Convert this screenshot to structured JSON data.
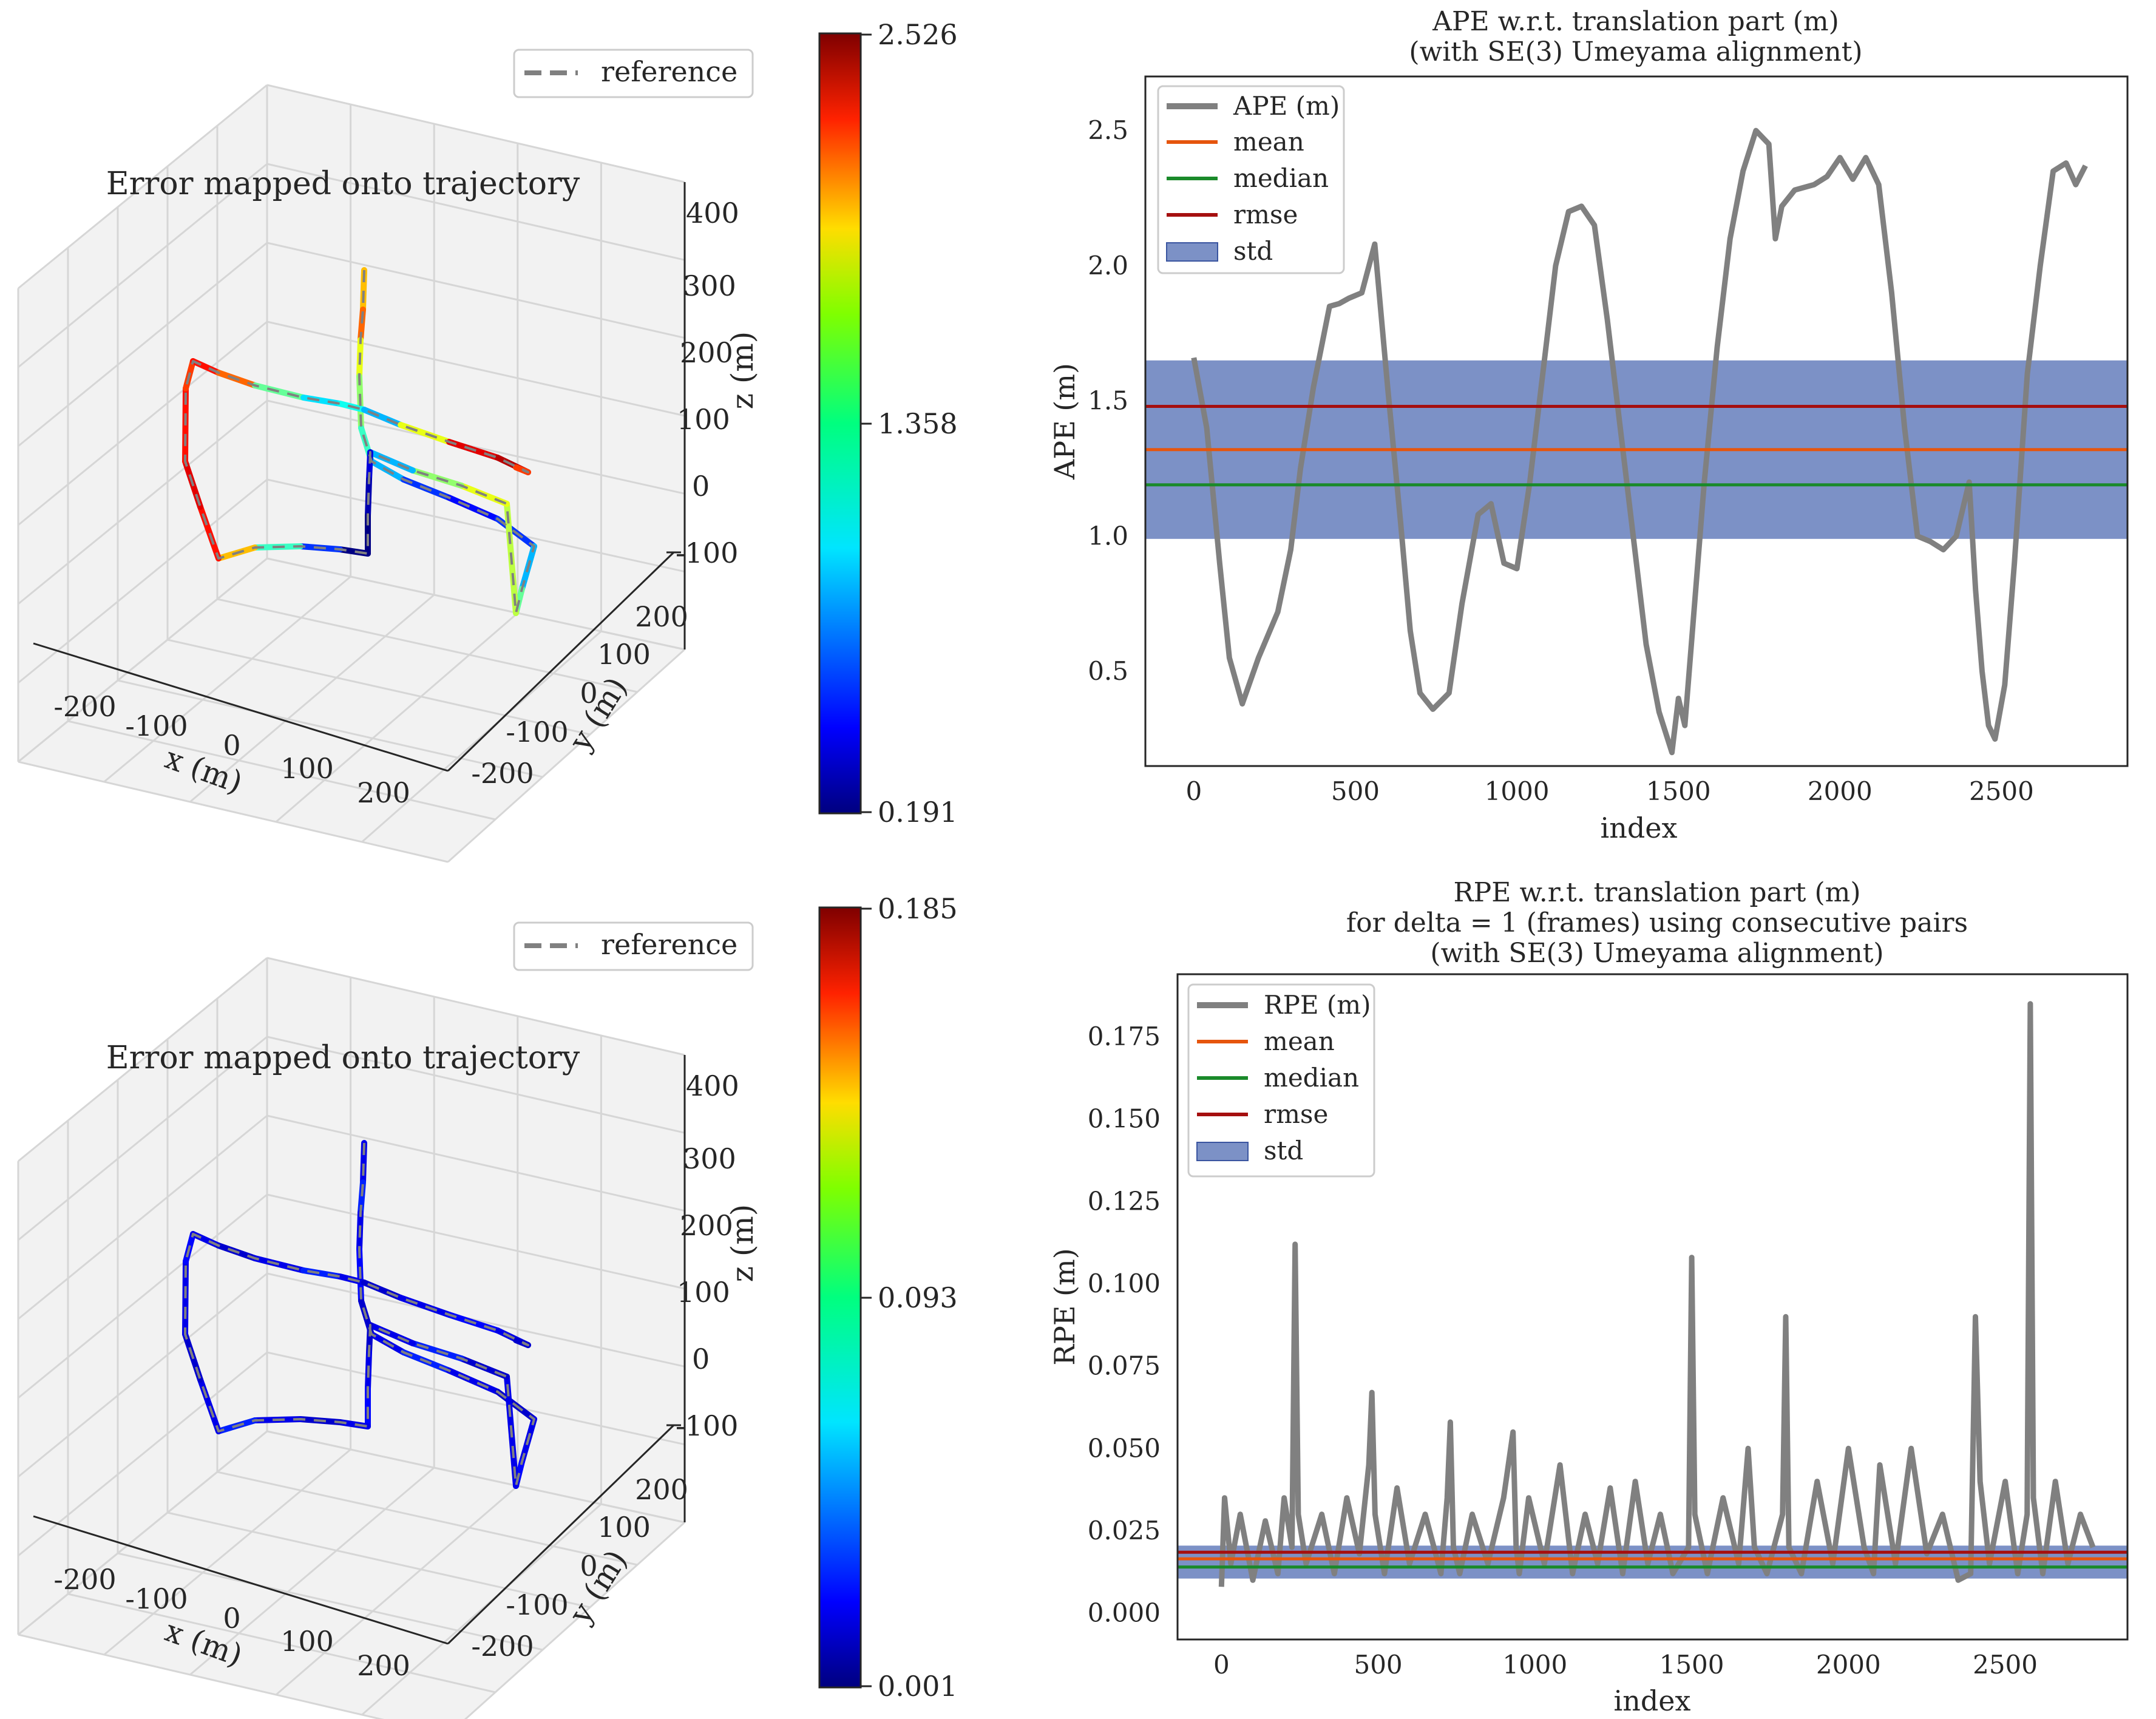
{
  "chart_data": [
    {
      "type": "scatter",
      "subtype": "3d-trajectory",
      "title": "Error mapped onto trajectory",
      "legend": [
        "reference"
      ],
      "legend_placement": "top-right",
      "xlabel": "x (m)",
      "ylabel": "y (m)",
      "zlabel": "z (m)",
      "xticks": [
        "-200",
        "-100",
        "0",
        "100",
        "200"
      ],
      "yticks": [
        "-200",
        "-100",
        "0",
        "100",
        "200"
      ],
      "zticks": [
        "-100",
        "0",
        "100",
        "200",
        "300",
        "400"
      ],
      "colorbar": {
        "min": 0.191,
        "mid": 1.358,
        "max": 2.526,
        "labels": [
          "2.526",
          "1.358",
          "0.191"
        ]
      },
      "segment_errors": [
        1.8,
        2.0,
        1.6,
        1.4,
        1.2,
        0.9,
        0.6,
        0.5,
        0.6,
        0.9,
        1.3,
        1.5,
        1.6,
        1.4,
        0.9,
        0.4,
        0.3,
        0.2,
        0.2,
        0.6,
        1.2,
        1.8,
        2.2,
        2.3,
        2.2,
        2.1,
        2.2,
        2.0,
        1.3,
        1.0,
        1.1,
        0.9,
        1.6,
        2.3,
        2.4,
        2.1
      ]
    },
    {
      "type": "line",
      "title": "APE w.r.t. translation part (m)",
      "subtitle": "(with SE(3) Umeyama alignment)",
      "xlabel": "index",
      "ylabel": "APE (m)",
      "xlim": [
        -150,
        2890
      ],
      "ylim": [
        0.15,
        2.7
      ],
      "xticks": [
        0,
        500,
        1000,
        1500,
        2000,
        2500
      ],
      "yticks": [
        0.5,
        1.0,
        1.5,
        2.0,
        2.5
      ],
      "xtick_labels": [
        "0",
        "500",
        "1000",
        "1500",
        "2000",
        "2500"
      ],
      "ytick_labels": [
        "0.5",
        "1.0",
        "1.5",
        "2.0",
        "2.5"
      ],
      "legend": [
        "APE (m)",
        "mean",
        "median",
        "rmse",
        "std"
      ],
      "legend_placement": "top-left",
      "stats": {
        "mean": 1.32,
        "median": 1.19,
        "rmse": 1.48,
        "std_low": 0.99,
        "std_high": 1.65
      },
      "series": [
        {
          "name": "APE (m)",
          "x": [
            0,
            40,
            80,
            110,
            150,
            200,
            260,
            300,
            330,
            370,
            420,
            450,
            480,
            520,
            560,
            600,
            640,
            670,
            700,
            740,
            790,
            830,
            880,
            920,
            960,
            1000,
            1040,
            1080,
            1120,
            1160,
            1200,
            1240,
            1280,
            1320,
            1360,
            1400,
            1440,
            1480,
            1500,
            1520,
            1540,
            1580,
            1620,
            1660,
            1700,
            1740,
            1780,
            1800,
            1820,
            1860,
            1920,
            1960,
            2000,
            2040,
            2080,
            2120,
            2160,
            2200,
            2240,
            2280,
            2320,
            2360,
            2400,
            2420,
            2440,
            2460,
            2480,
            2510,
            2540,
            2580,
            2620,
            2660,
            2700,
            2730,
            2760
          ],
          "values": [
            1.66,
            1.4,
            0.9,
            0.55,
            0.38,
            0.55,
            0.72,
            0.95,
            1.25,
            1.55,
            1.85,
            1.86,
            1.88,
            1.9,
            2.08,
            1.55,
            1.05,
            0.65,
            0.42,
            0.36,
            0.42,
            0.75,
            1.08,
            1.12,
            0.9,
            0.88,
            1.2,
            1.6,
            2.0,
            2.2,
            2.22,
            2.15,
            1.8,
            1.4,
            1.0,
            0.6,
            0.35,
            0.2,
            0.4,
            0.3,
            0.6,
            1.2,
            1.7,
            2.1,
            2.35,
            2.5,
            2.45,
            2.1,
            2.22,
            2.28,
            2.3,
            2.33,
            2.4,
            2.32,
            2.4,
            2.3,
            1.9,
            1.4,
            1.0,
            0.98,
            0.95,
            1.0,
            1.2,
            0.8,
            0.5,
            0.3,
            0.25,
            0.45,
            0.9,
            1.6,
            2.0,
            2.35,
            2.38,
            2.3,
            2.37
          ]
        }
      ]
    },
    {
      "type": "scatter",
      "subtype": "3d-trajectory",
      "title": "Error mapped onto trajectory",
      "legend": [
        "reference"
      ],
      "legend_placement": "top-right",
      "xlabel": "x (m)",
      "ylabel": "y (m)",
      "zlabel": "z (m)",
      "xticks": [
        "-200",
        "-100",
        "0",
        "100",
        "200"
      ],
      "yticks": [
        "-200",
        "-100",
        "0",
        "100",
        "200"
      ],
      "zticks": [
        "-100",
        "0",
        "100",
        "200",
        "300",
        "400"
      ],
      "colorbar": {
        "min": 0.001,
        "mid": 0.093,
        "max": 0.185,
        "labels": [
          "0.185",
          "0.093",
          "0.001"
        ]
      },
      "segment_errors": [
        0.02,
        0.03,
        0.02,
        0.025,
        0.015,
        0.02,
        0.03,
        0.02,
        0.015,
        0.02,
        0.025,
        0.02,
        0.015,
        0.03,
        0.02,
        0.015,
        0.02,
        0.025,
        0.02,
        0.015,
        0.02,
        0.03,
        0.02,
        0.015,
        0.02,
        0.025,
        0.02,
        0.015,
        0.02,
        0.03,
        0.02,
        0.015,
        0.02,
        0.025,
        0.02,
        0.015
      ]
    },
    {
      "type": "line",
      "title": "RPE w.r.t. translation part (m)",
      "subtitle": "for delta = 1 (frames) using consecutive pairs",
      "subtitle2": "(with SE(3) Umeyama alignment)",
      "xlabel": "index",
      "ylabel": "RPE (m)",
      "xlim": [
        -140,
        2890
      ],
      "ylim": [
        -0.008,
        0.194
      ],
      "xticks": [
        0,
        500,
        1000,
        1500,
        2000,
        2500
      ],
      "yticks": [
        0.0,
        0.025,
        0.05,
        0.075,
        0.1,
        0.125,
        0.15,
        0.175
      ],
      "xtick_labels": [
        "0",
        "500",
        "1000",
        "1500",
        "2000",
        "2500"
      ],
      "ytick_labels": [
        "0.000",
        "0.025",
        "0.050",
        "0.075",
        "0.100",
        "0.125",
        "0.150",
        "0.175"
      ],
      "legend": [
        "RPE (m)",
        "mean",
        "median",
        "rmse",
        "std"
      ],
      "legend_placement": "top-left",
      "stats": {
        "mean": 0.0165,
        "median": 0.014,
        "rmse": 0.0185,
        "std_low": 0.0105,
        "std_high": 0.0205
      },
      "series": [
        {
          "name": "RPE (m)",
          "x": [
            0,
            10,
            30,
            60,
            100,
            140,
            180,
            200,
            225,
            235,
            245,
            270,
            320,
            360,
            400,
            440,
            470,
            480,
            490,
            520,
            560,
            600,
            650,
            700,
            720,
            730,
            740,
            760,
            800,
            850,
            900,
            930,
            940,
            950,
            980,
            1030,
            1080,
            1120,
            1160,
            1200,
            1240,
            1280,
            1320,
            1360,
            1400,
            1440,
            1490,
            1500,
            1510,
            1550,
            1600,
            1650,
            1680,
            1700,
            1740,
            1790,
            1800,
            1810,
            1850,
            1900,
            1950,
            2000,
            2050,
            2080,
            2100,
            2150,
            2200,
            2250,
            2300,
            2350,
            2390,
            2405,
            2420,
            2450,
            2500,
            2540,
            2570,
            2580,
            2590,
            2620,
            2660,
            2700,
            2740,
            2780
          ],
          "values": [
            0.008,
            0.035,
            0.015,
            0.03,
            0.01,
            0.028,
            0.012,
            0.035,
            0.02,
            0.112,
            0.03,
            0.015,
            0.03,
            0.012,
            0.035,
            0.018,
            0.045,
            0.067,
            0.03,
            0.012,
            0.038,
            0.015,
            0.03,
            0.012,
            0.035,
            0.058,
            0.02,
            0.012,
            0.03,
            0.015,
            0.035,
            0.055,
            0.02,
            0.012,
            0.035,
            0.015,
            0.045,
            0.012,
            0.03,
            0.015,
            0.038,
            0.012,
            0.04,
            0.015,
            0.03,
            0.012,
            0.02,
            0.108,
            0.03,
            0.012,
            0.035,
            0.015,
            0.05,
            0.02,
            0.012,
            0.03,
            0.09,
            0.02,
            0.012,
            0.04,
            0.015,
            0.05,
            0.02,
            0.012,
            0.045,
            0.015,
            0.05,
            0.018,
            0.03,
            0.01,
            0.012,
            0.09,
            0.04,
            0.015,
            0.04,
            0.012,
            0.03,
            0.185,
            0.035,
            0.012,
            0.04,
            0.015,
            0.03,
            0.02
          ]
        }
      ]
    }
  ]
}
